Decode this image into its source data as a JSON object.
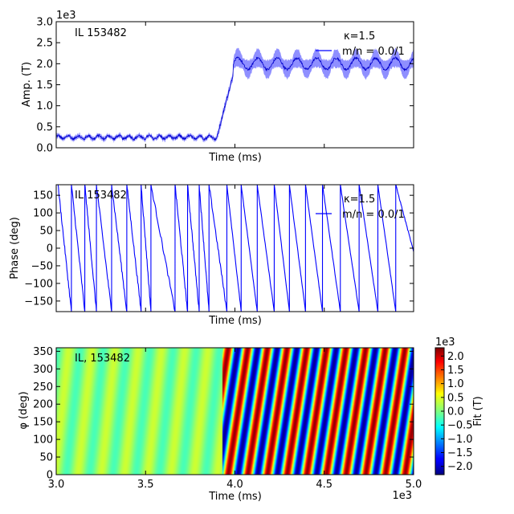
{
  "chart_data": [
    {
      "type": "line",
      "annotation": "IL 153482",
      "legend_title": "κ=1.5",
      "series": [
        {
          "name": "m/n = 0.0/1",
          "color": "#0000ff"
        }
      ],
      "xlabel": "Time (ms)",
      "ylabel": "Amp. (T)",
      "ylim": [
        0,
        3000
      ],
      "yticks": [
        "0.0",
        "0.5",
        "1.0",
        "1.5",
        "2.0",
        "2.5",
        "3.0"
      ],
      "y_multiplier": "1e3",
      "xlim": [
        3000,
        5000
      ],
      "x_tick_labels_shown": false,
      "profile": {
        "pre_level": 250,
        "pre_end": 3900,
        "ramp_end": 3990,
        "post_level": 2000,
        "post_osc_amplitude": 250,
        "post_osc_period": 110
      }
    },
    {
      "type": "line",
      "annotation": "IL 153482",
      "legend_title": "κ=1.5",
      "series": [
        {
          "name": "m/n = 0.0/1",
          "color": "#0000ff"
        }
      ],
      "xlabel": "Time (ms)",
      "ylabel": "Phase (deg)",
      "ylim": [
        -180,
        180
      ],
      "yticks": [
        "−150",
        "−100",
        "−50",
        "0",
        "50",
        "100",
        "150"
      ],
      "xlim": [
        3000,
        5000
      ],
      "x_tick_labels_shown": false,
      "profile": {
        "wrap_start_times": [
          3010,
          3085,
          3160,
          3225,
          3310,
          3395,
          3475,
          3530,
          3665,
          3735,
          3800,
          3855,
          3955,
          4035,
          4125,
          4220,
          4305,
          4395,
          4490,
          4590,
          4695,
          4800,
          4900
        ],
        "end_value": -10
      }
    },
    {
      "type": "heatmap",
      "annotation": "IL, 153482",
      "xlabel": "Time (ms)",
      "ylabel": "φ (deg)",
      "xlim": [
        3000,
        5000
      ],
      "xticks": [
        "3.0",
        "3.5",
        "4.0",
        "4.5",
        "5.0"
      ],
      "x_multiplier": "1e3",
      "ylim": [
        0,
        360
      ],
      "yticks": [
        "0",
        "50",
        "100",
        "150",
        "200",
        "250",
        "300",
        "350"
      ],
      "colorbar": {
        "label": "Fit (T)",
        "multiplier": "1e3",
        "range": [
          -2.3,
          2.3
        ],
        "ticks": [
          "−2.0",
          "−1.5",
          "−1.0",
          "−0.5",
          "0.0",
          "0.5",
          "1.0",
          "1.5",
          "2.0"
        ],
        "colormap": "jet"
      },
      "profile": {
        "pre_amplitude": 0.3,
        "post_amplitude": 2.2,
        "transition_time": 3930,
        "stripe_period_post": 110
      }
    }
  ]
}
